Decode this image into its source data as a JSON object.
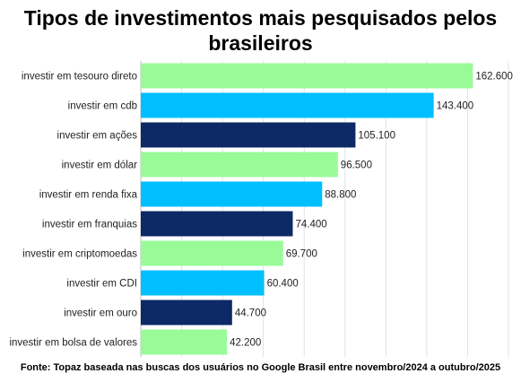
{
  "chart_data": {
    "type": "bar",
    "orientation": "horizontal",
    "title": "Tipos de investimentos mais pesquisados pelos brasileiros",
    "source": "Fonte: Topaz baseada nas buscas dos usuários no Google Brasil entre novembro/2024 a outubro/2025",
    "categories": [
      "investir em tesouro direto",
      "investir em cdb",
      "investir em ações",
      "investir em dólar",
      "investir em renda fixa",
      "investir em franquias",
      "investir em criptomoedas",
      "investir em CDI",
      "investir em ouro",
      "investir em bolsa de valores"
    ],
    "values": [
      162600,
      143400,
      105100,
      96500,
      88800,
      74400,
      69700,
      60400,
      44700,
      42200
    ],
    "value_labels": [
      "162.600",
      "143.400",
      "105.100",
      "96.500",
      "88.800",
      "74.400",
      "69.700",
      "60.400",
      "44.700",
      "42.200"
    ],
    "bar_colors": [
      "#98FB98",
      "#00BFFF",
      "#0D2A66",
      "#98FB98",
      "#00BFFF",
      "#0D2A66",
      "#98FB98",
      "#00BFFF",
      "#0D2A66",
      "#98FB98"
    ],
    "xlim": [
      0,
      180000
    ],
    "xlabel": "",
    "ylabel": "",
    "grid": true
  }
}
